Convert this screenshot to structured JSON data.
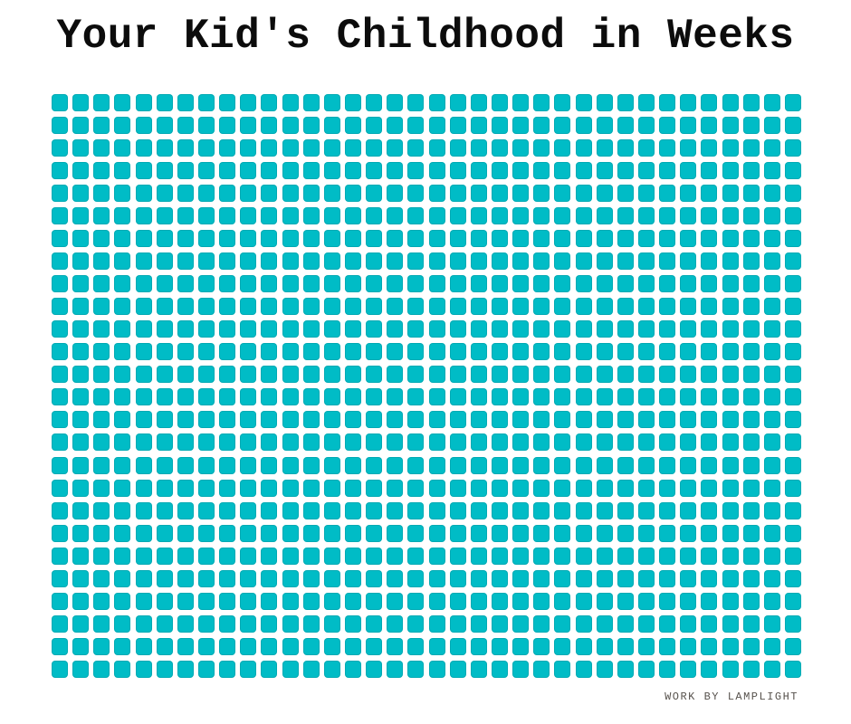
{
  "header": {
    "title": "Your Kid's Childhood in Weeks"
  },
  "footer": {
    "credit": "WORK BY LAMPLIGHT"
  },
  "colors": {
    "cell_teal": "#00bcc6",
    "title_black": "#0c0c0c",
    "credit_gray": "#57524d",
    "background": "#ffffff"
  },
  "chart_data": {
    "type": "heatmap",
    "subtype": "waffle-unit-grid",
    "title": "Your Kid's Childhood in Weeks",
    "rows": 26,
    "columns": 36,
    "total_cells": 936,
    "filled_cells": 936,
    "empty_cells": 0,
    "cell_represents": "1 week",
    "cell_color": "#00bcc6",
    "background_color": "#ffffff",
    "legend": "none",
    "axes": "none",
    "annotations": [
      "WORK BY LAMPLIGHT"
    ]
  }
}
